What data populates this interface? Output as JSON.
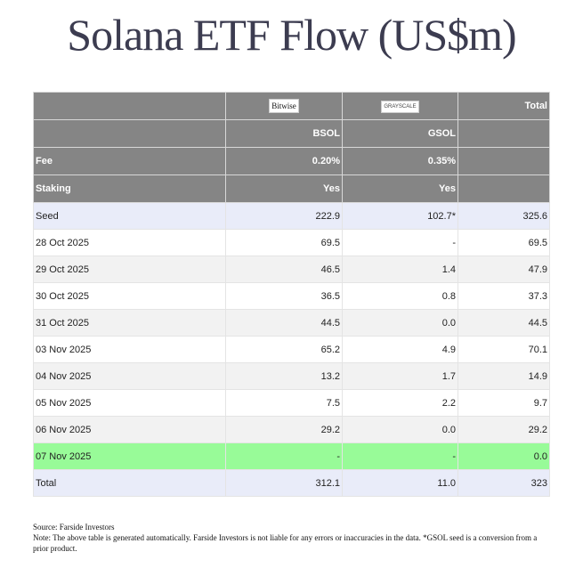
{
  "title": "Solana ETF Flow (US$m)",
  "colors": {
    "header_bg": "#858585",
    "seed_row_bg": "#e9ecf9",
    "alt_row_bg": "#f2f2f2",
    "highlight_row_bg": "#98fb98",
    "total_row_bg": "#e9ecf9"
  },
  "header": {
    "logos": [
      "Bitwise",
      "GRAYSCALE"
    ],
    "total_label": "Total",
    "tickers": [
      "BSOL",
      "GSOL"
    ],
    "fee_label": "Fee",
    "fees": [
      "0.20%",
      "0.35%"
    ],
    "staking_label": "Staking",
    "staking": [
      "Yes",
      "Yes"
    ]
  },
  "rows": [
    {
      "label": "Seed",
      "bsol": "222.9",
      "gsol": "102.7*",
      "total": "325.6",
      "style": "seed"
    },
    {
      "label": "28 Oct 2025",
      "bsol": "69.5",
      "gsol": "-",
      "total": "69.5",
      "style": "white"
    },
    {
      "label": "29 Oct 2025",
      "bsol": "46.5",
      "gsol": "1.4",
      "total": "47.9",
      "style": "alt"
    },
    {
      "label": "30 Oct 2025",
      "bsol": "36.5",
      "gsol": "0.8",
      "total": "37.3",
      "style": "white"
    },
    {
      "label": "31 Oct 2025",
      "bsol": "44.5",
      "gsol": "0.0",
      "total": "44.5",
      "style": "alt"
    },
    {
      "label": "03 Nov 2025",
      "bsol": "65.2",
      "gsol": "4.9",
      "total": "70.1",
      "style": "white"
    },
    {
      "label": "04 Nov 2025",
      "bsol": "13.2",
      "gsol": "1.7",
      "total": "14.9",
      "style": "alt"
    },
    {
      "label": "05 Nov 2025",
      "bsol": "7.5",
      "gsol": "2.2",
      "total": "9.7",
      "style": "white"
    },
    {
      "label": "06 Nov 2025",
      "bsol": "29.2",
      "gsol": "0.0",
      "total": "29.2",
      "style": "alt"
    },
    {
      "label": "07 Nov 2025",
      "bsol": "-",
      "gsol": "-",
      "total": "0.0",
      "style": "highlight"
    },
    {
      "label": "Total",
      "bsol": "312.1",
      "gsol": "11.0",
      "total": "323",
      "style": "total"
    }
  ],
  "footer": {
    "source": "Source: Farside Investors",
    "note": "Note: The above table is generated automatically. Farside Investors is not liable for any errors or inaccuracies in the data. *GSOL seed is a conversion from a prior product."
  }
}
